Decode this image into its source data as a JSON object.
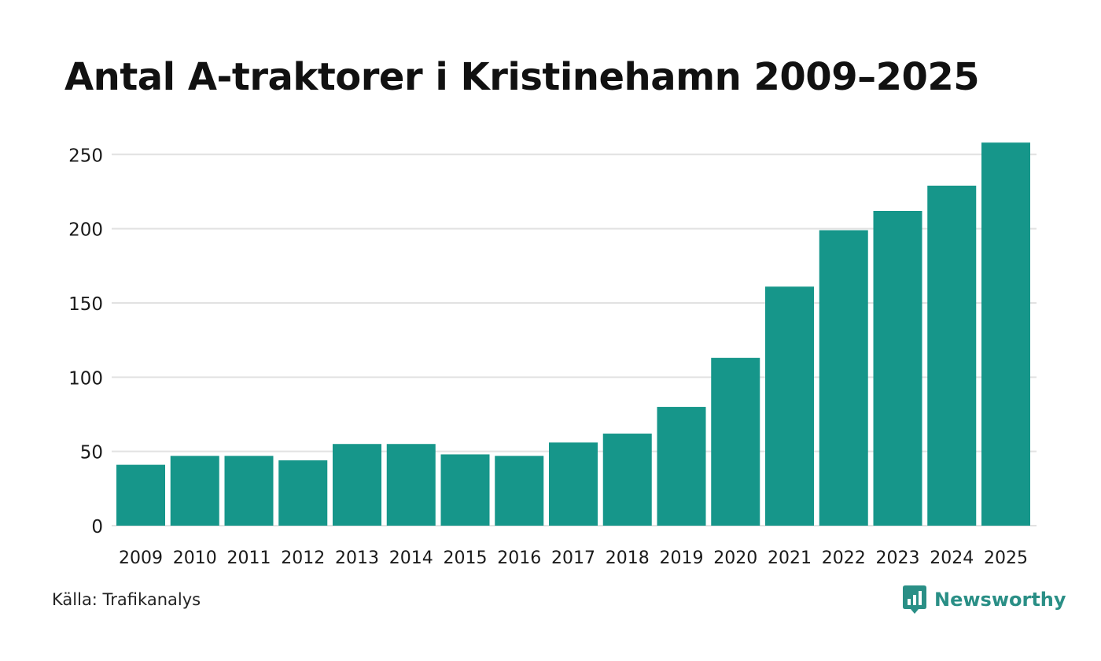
{
  "chart_data": {
    "type": "bar",
    "title": "Antal A-traktorer i Kristinehamn 2009–2025",
    "categories": [
      "2009",
      "2010",
      "2011",
      "2012",
      "2013",
      "2014",
      "2015",
      "2016",
      "2017",
      "2018",
      "2019",
      "2020",
      "2021",
      "2022",
      "2023",
      "2024",
      "2025"
    ],
    "values": [
      41,
      47,
      47,
      44,
      55,
      55,
      48,
      47,
      56,
      62,
      80,
      113,
      161,
      199,
      212,
      229,
      258
    ],
    "yticks": [
      "0",
      "50",
      "100",
      "150",
      "200",
      "250"
    ],
    "ylim": [
      0,
      265
    ],
    "grid": true,
    "xlabel": "",
    "ylabel": "",
    "bar_color": "#16968a",
    "grid_color": "#e2e2e2"
  },
  "footer": {
    "source": "Källa: Trafikanalys",
    "brand": "Newsworthy",
    "brand_icon": "newsworthy-logo-icon",
    "brand_color": "#2a8f86"
  }
}
